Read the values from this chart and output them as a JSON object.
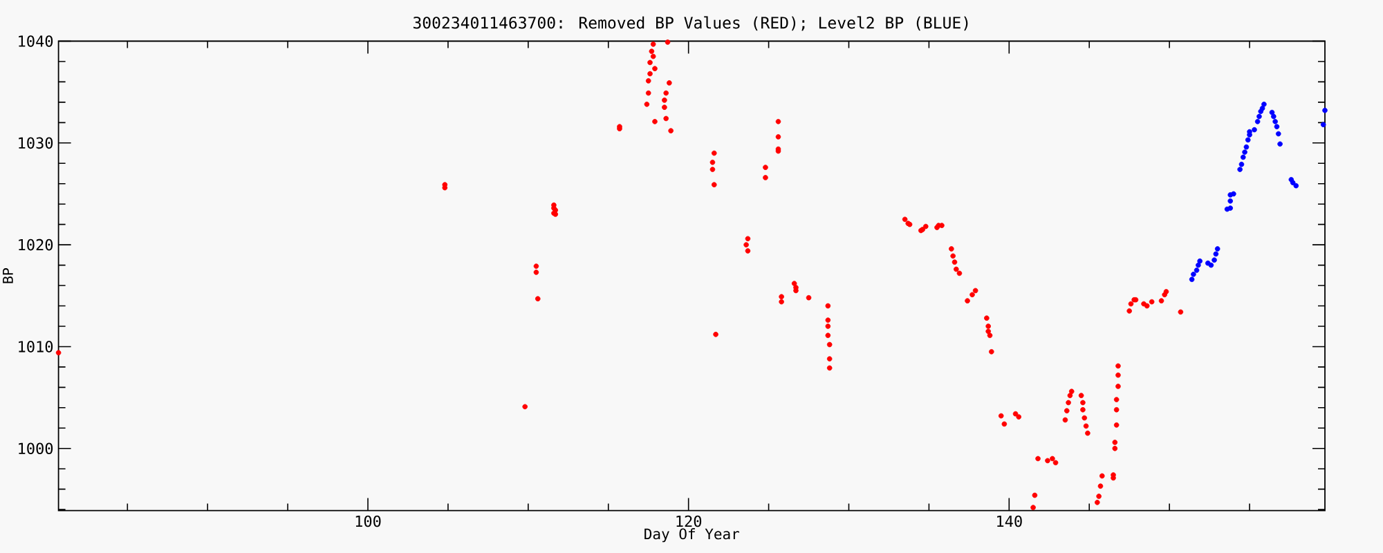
{
  "chart_data": {
    "type": "scatter",
    "title": "300234011463700: Removed BP Values (RED); Level2 BP (BLUE)",
    "xlabel": "Day Of Year",
    "ylabel": "BP",
    "marker": "circle",
    "xlim": [
      80.7,
      159.7
    ],
    "ylim": [
      993.9,
      1040
    ],
    "xticks": [
      {
        "value": 85,
        "label": null
      },
      {
        "value": 90,
        "label": null
      },
      {
        "value": 95,
        "label": null
      },
      100,
      {
        "value": 105,
        "label": null
      },
      {
        "value": 110,
        "label": null
      },
      {
        "value": 115,
        "label": null
      },
      120,
      {
        "value": 125,
        "label": null
      },
      {
        "value": 130,
        "label": null
      },
      {
        "value": 135,
        "label": null
      },
      140,
      {
        "value": 145,
        "label": null
      },
      {
        "value": 150,
        "label": null
      },
      {
        "value": 155,
        "label": null
      }
    ],
    "yticks": [
      {
        "value": 994,
        "label": null
      },
      {
        "value": 996,
        "label": null
      },
      {
        "value": 998,
        "label": null
      },
      1000,
      {
        "value": 1002,
        "label": null
      },
      {
        "value": 1004,
        "label": null
      },
      {
        "value": 1006,
        "label": null
      },
      {
        "value": 1008,
        "label": null
      },
      1010,
      {
        "value": 1012,
        "label": null
      },
      {
        "value": 1014,
        "label": null
      },
      {
        "value": 1016,
        "label": null
      },
      {
        "value": 1018,
        "label": null
      },
      1020,
      {
        "value": 1022,
        "label": null
      },
      {
        "value": 1024,
        "label": null
      },
      {
        "value": 1026,
        "label": null
      },
      {
        "value": 1028,
        "label": null
      },
      1030,
      {
        "value": 1032,
        "label": null
      },
      {
        "value": 1034,
        "label": null
      },
      {
        "value": 1036,
        "label": null
      },
      {
        "value": 1038,
        "label": null
      },
      1040
    ],
    "series": [
      {
        "color": "#ff0000",
        "x": [
          80.7,
          104.8,
          104.8,
          109.8,
          110.5,
          110.5,
          110.6,
          111.6,
          111.6,
          111.7,
          111.6,
          111.7,
          115.7,
          115.7,
          117.4,
          117.5,
          117.5,
          117.6,
          117.6,
          117.7,
          117.8,
          117.8,
          117.9,
          117.9,
          118.7,
          118.8,
          118.6,
          118.5,
          118.5,
          118.6,
          118.9,
          121.6,
          121.5,
          121.5,
          121.6,
          121.7,
          123.7,
          123.6,
          123.7,
          124.8,
          124.8,
          125.6,
          125.6,
          125.6,
          125.6,
          125.8,
          125.8,
          126.6,
          126.7,
          126.7,
          127.5,
          128.7,
          128.7,
          128.7,
          128.7,
          128.8,
          128.8,
          128.8,
          133.5,
          133.7,
          133.8,
          134.5,
          134.6,
          134.8,
          135.5,
          135.6,
          135.8,
          136.4,
          136.5,
          136.6,
          136.7,
          136.9,
          137.4,
          137.7,
          137.9,
          138.6,
          138.7,
          138.7,
          138.8,
          138.9,
          139.5,
          139.7,
          140.4,
          140.6,
          141.6,
          141.5,
          141.8,
          142.4,
          142.7,
          142.9,
          143.5,
          143.6,
          143.7,
          143.8,
          143.9,
          144.5,
          144.6,
          144.6,
          144.7,
          144.8,
          144.9,
          145.5,
          145.6,
          145.7,
          145.8,
          146.5,
          146.5,
          146.6,
          146.6,
          146.7,
          146.7,
          146.7,
          146.8,
          146.8,
          146.8,
          147.5,
          147.6,
          147.8,
          147.9,
          148.4,
          148.6,
          148.9,
          149.5,
          149.7,
          149.8,
          150.7
        ],
        "values": [
          1009.4,
          1025.9,
          1025.6,
          1004.1,
          1017.9,
          1017.3,
          1014.7,
          1023.9,
          1023.6,
          1023.4,
          1023.1,
          1023.0,
          1031.6,
          1031.4,
          1033.8,
          1034.9,
          1036.1,
          1036.8,
          1037.9,
          1039.0,
          1039.7,
          1038.5,
          1037.3,
          1032.1,
          1039.9,
          1035.9,
          1034.9,
          1034.2,
          1033.5,
          1032.4,
          1031.2,
          1029.0,
          1028.1,
          1027.4,
          1025.9,
          1011.2,
          1020.6,
          1020.0,
          1019.4,
          1027.6,
          1026.6,
          1032.1,
          1030.6,
          1029.4,
          1029.2,
          1014.9,
          1014.4,
          1016.2,
          1015.8,
          1015.5,
          1014.8,
          1014.0,
          1012.6,
          1012.0,
          1011.1,
          1010.2,
          1008.8,
          1007.9,
          1022.5,
          1022.1,
          1022.0,
          1021.4,
          1021.5,
          1021.8,
          1021.7,
          1021.9,
          1021.9,
          1019.6,
          1018.9,
          1018.3,
          1017.6,
          1017.2,
          1014.5,
          1015.1,
          1015.5,
          1012.8,
          1012.0,
          1011.5,
          1011.1,
          1009.5,
          1003.2,
          1002.4,
          1003.4,
          1003.1,
          995.4,
          994.2,
          999.0,
          998.8,
          999.0,
          998.6,
          1002.8,
          1003.7,
          1004.5,
          1005.2,
          1005.6,
          1005.2,
          1004.5,
          1003.8,
          1003.0,
          1002.2,
          1001.5,
          994.7,
          995.3,
          996.3,
          997.3,
          997.4,
          997.1,
          1000.0,
          1000.6,
          1002.3,
          1003.8,
          1004.8,
          1006.1,
          1007.2,
          1008.1,
          1013.5,
          1014.2,
          1014.6,
          1014.6,
          1014.2,
          1014.0,
          1014.4,
          1014.5,
          1015.1,
          1015.4,
          1013.4
        ]
      },
      {
        "color": "#0000ff",
        "x": [
          151.4,
          151.5,
          151.7,
          151.8,
          151.9,
          152.4,
          152.6,
          152.8,
          152.9,
          153.0,
          153.6,
          153.8,
          153.8,
          153.8,
          154.0,
          154.4,
          154.5,
          154.6,
          154.7,
          154.8,
          154.9,
          155.0,
          155.0,
          155.3,
          155.5,
          155.6,
          155.7,
          155.8,
          155.9,
          156.4,
          156.5,
          156.6,
          156.7,
          156.8,
          156.9,
          157.6,
          157.7,
          157.9,
          159.7,
          159.6
        ],
        "values": [
          1016.6,
          1017.1,
          1017.5,
          1018.0,
          1018.4,
          1018.2,
          1018.0,
          1018.5,
          1019.1,
          1019.6,
          1023.5,
          1023.6,
          1024.3,
          1024.9,
          1025.0,
          1027.4,
          1027.9,
          1028.6,
          1029.1,
          1029.6,
          1030.3,
          1030.8,
          1031.1,
          1031.3,
          1032.1,
          1032.6,
          1033.1,
          1033.4,
          1033.8,
          1033.0,
          1032.6,
          1032.1,
          1031.6,
          1030.9,
          1029.9,
          1026.4,
          1026.1,
          1025.8,
          1033.2,
          1031.8
        ]
      }
    ]
  }
}
